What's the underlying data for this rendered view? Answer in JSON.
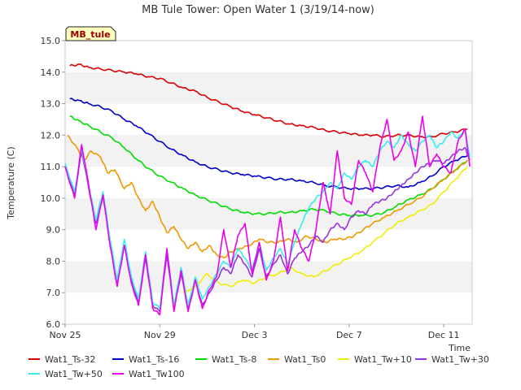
{
  "chart_data": {
    "type": "line",
    "title": "MB Tule Tower: Open Water 1 (3/19/14-now)",
    "ylabel": "Temperature (C)",
    "xlabel": "Time",
    "badge": "MB_tule",
    "xlim": [
      0,
      17.2
    ],
    "ylim": [
      6.0,
      15.0
    ],
    "yticks": [
      6.0,
      7.0,
      8.0,
      9.0,
      10.0,
      11.0,
      12.0,
      13.0,
      14.0,
      15.0
    ],
    "ytick_labels": [
      "6.0",
      "7.0",
      "8.0",
      "9.0",
      "10.0",
      "11.0",
      "12.0",
      "13.0",
      "14.0",
      "15.0"
    ],
    "xticks": [
      0,
      4,
      8,
      12,
      16
    ],
    "xtick_labels": [
      "Nov 25",
      "Nov 29",
      "Dec 3",
      "Dec 7",
      "Dec 11"
    ],
    "grid_bands": true,
    "legend_position": "bottom",
    "series": [
      {
        "name": "Wat1_Ts-32",
        "color": "#dd0000",
        "x": [
          0.2,
          0.6,
          1,
          1.5,
          2,
          2.5,
          3,
          3.5,
          4,
          4.5,
          5,
          5.5,
          6,
          6.5,
          7,
          7.5,
          8,
          8.5,
          9,
          9.5,
          10,
          10.5,
          11,
          11.5,
          12,
          12.5,
          13,
          13.5,
          14,
          14.5,
          15,
          15.5,
          16,
          16.5,
          17
        ],
        "y": [
          14.2,
          14.25,
          14.15,
          14.1,
          14.05,
          14.0,
          13.95,
          13.85,
          13.8,
          13.65,
          13.5,
          13.4,
          13.2,
          13.05,
          12.9,
          12.75,
          12.65,
          12.55,
          12.45,
          12.35,
          12.3,
          12.25,
          12.15,
          12.1,
          12.05,
          12.0,
          12.0,
          11.95,
          12.0,
          12.0,
          11.95,
          11.95,
          12.05,
          12.1,
          12.2
        ]
      },
      {
        "name": "Wat1_Ts-16",
        "color": "#0000cc",
        "x": [
          0.2,
          0.6,
          1,
          1.5,
          2,
          2.5,
          3,
          3.5,
          4,
          4.5,
          5,
          5.5,
          6,
          6.5,
          7,
          7.5,
          8,
          8.5,
          9,
          9.5,
          10,
          10.5,
          11,
          11.5,
          12,
          12.5,
          13,
          13.5,
          14,
          14.5,
          15,
          15.5,
          16,
          16.5,
          17
        ],
        "y": [
          13.15,
          13.1,
          13.0,
          12.9,
          12.75,
          12.5,
          12.3,
          12.05,
          11.8,
          11.55,
          11.35,
          11.15,
          11.0,
          10.9,
          10.8,
          10.75,
          10.7,
          10.65,
          10.6,
          10.6,
          10.55,
          10.5,
          10.4,
          10.35,
          10.3,
          10.3,
          10.3,
          10.35,
          10.4,
          10.35,
          10.5,
          10.7,
          11.0,
          11.2,
          11.35
        ]
      },
      {
        "name": "Wat1_Ts-8",
        "color": "#00dd00",
        "x": [
          0.2,
          0.6,
          1,
          1.5,
          2,
          2.5,
          3,
          3.5,
          4,
          4.5,
          5,
          5.5,
          6,
          6.5,
          7,
          7.5,
          8,
          8.5,
          9,
          9.5,
          10,
          10.5,
          11,
          11.5,
          12,
          12.5,
          13,
          13.5,
          14,
          14.5,
          15,
          15.5,
          16,
          16.5,
          17
        ],
        "y": [
          12.6,
          12.45,
          12.3,
          12.1,
          11.9,
          11.6,
          11.25,
          10.95,
          10.7,
          10.5,
          10.3,
          10.1,
          9.95,
          9.8,
          9.65,
          9.55,
          9.5,
          9.5,
          9.55,
          9.55,
          9.6,
          9.65,
          9.6,
          9.5,
          9.45,
          9.45,
          9.45,
          9.55,
          9.75,
          9.95,
          10.1,
          10.3,
          10.6,
          10.9,
          11.2
        ]
      },
      {
        "name": "Wat1_Ts0",
        "color": "#ee9900",
        "x": [
          0.1,
          0.5,
          0.8,
          1.1,
          1.5,
          1.8,
          2.1,
          2.5,
          2.8,
          3.1,
          3.4,
          3.7,
          4.0,
          4.3,
          4.6,
          4.9,
          5.2,
          5.5,
          5.8,
          6.1,
          6.4,
          6.7,
          7.0,
          7.4,
          7.8,
          8.2,
          8.6,
          9.0,
          9.4,
          9.8,
          10.2,
          10.6,
          11.0,
          11.4,
          11.8,
          12.2,
          12.6,
          13.0,
          13.5,
          14.0,
          14.5,
          15.0,
          15.5,
          16.0,
          16.5,
          17.0
        ],
        "y": [
          12.0,
          11.6,
          11.2,
          11.5,
          11.3,
          10.8,
          10.9,
          10.3,
          10.5,
          10.0,
          9.6,
          9.9,
          9.4,
          8.9,
          9.1,
          8.7,
          8.4,
          8.6,
          8.3,
          8.5,
          8.2,
          8.1,
          8.3,
          8.4,
          8.5,
          8.7,
          8.6,
          8.6,
          8.7,
          8.6,
          8.8,
          8.7,
          8.6,
          8.7,
          8.7,
          8.8,
          9.0,
          9.2,
          9.4,
          9.6,
          9.8,
          10.0,
          10.3,
          10.6,
          10.9,
          11.2
        ]
      },
      {
        "name": "Wat1_Tw+10",
        "color": "#eeee00",
        "x": [
          5,
          5.5,
          6,
          6.5,
          7,
          7.5,
          8,
          8.5,
          9,
          9.5,
          10,
          10.5,
          11,
          11.5,
          12,
          12.5,
          13,
          13.5,
          14,
          14.5,
          15,
          15.5,
          16,
          16.5,
          17
        ],
        "y": [
          7.0,
          7.2,
          7.6,
          7.3,
          7.2,
          7.4,
          7.3,
          7.5,
          7.6,
          7.8,
          7.6,
          7.5,
          7.7,
          7.9,
          8.1,
          8.3,
          8.6,
          8.9,
          9.2,
          9.4,
          9.6,
          9.8,
          10.2,
          10.6,
          11.0
        ]
      },
      {
        "name": "Wat1_Tw+30",
        "color": "#9933dd",
        "x": [
          0,
          0.4,
          0.7,
          1.0,
          1.3,
          1.6,
          1.9,
          2.2,
          2.5,
          2.8,
          3.1,
          3.4,
          3.7,
          4.0,
          4.3,
          4.6,
          4.9,
          5.2,
          5.5,
          5.8,
          6.1,
          6.4,
          6.7,
          7.0,
          7.3,
          7.6,
          7.9,
          8.2,
          8.5,
          8.8,
          9.1,
          9.4,
          9.7,
          10.0,
          10.3,
          10.6,
          10.9,
          11.2,
          11.5,
          11.8,
          12.1,
          12.4,
          12.7,
          13.0,
          13.3,
          13.6,
          13.9,
          14.2,
          14.5,
          14.8,
          15.1,
          15.4,
          15.7,
          16.0,
          16.3,
          16.6,
          16.9,
          17.1
        ],
        "y": [
          11.0,
          10.1,
          11.5,
          10.3,
          9.2,
          10.1,
          8.6,
          7.3,
          8.5,
          7.4,
          6.7,
          8.1,
          6.6,
          6.4,
          8.2,
          6.5,
          7.6,
          6.5,
          7.4,
          6.6,
          7.0,
          7.4,
          7.8,
          7.6,
          8.2,
          7.9,
          7.5,
          8.4,
          7.5,
          7.9,
          8.2,
          7.6,
          8.1,
          8.3,
          8.5,
          8.8,
          8.6,
          9.0,
          9.2,
          9.0,
          9.4,
          9.6,
          9.5,
          9.8,
          9.9,
          10.0,
          10.2,
          10.4,
          10.6,
          10.8,
          11.0,
          11.1,
          11.2,
          11.1,
          11.3,
          11.5,
          11.6,
          11.2
        ]
      },
      {
        "name": "Wat1_Tw+50",
        "color": "#33eeee",
        "x": [
          0,
          0.4,
          0.7,
          1.0,
          1.3,
          1.6,
          1.9,
          2.2,
          2.5,
          2.8,
          3.1,
          3.4,
          3.7,
          4.0,
          4.3,
          4.6,
          4.9,
          5.2,
          5.5,
          5.8,
          6.1,
          6.4,
          6.7,
          7.0,
          7.3,
          7.6,
          7.9,
          8.2,
          8.5,
          8.8,
          9.1,
          9.4,
          9.7,
          10.0,
          10.3,
          10.6,
          10.9,
          11.2,
          11.5,
          11.8,
          12.1,
          12.4,
          12.7,
          13.0,
          13.3,
          13.6,
          13.9,
          14.2,
          14.5,
          14.8,
          15.1,
          15.4,
          15.7,
          16.0,
          16.3,
          16.6,
          16.9,
          17.1
        ],
        "y": [
          11.1,
          10.2,
          11.6,
          10.4,
          9.3,
          10.2,
          8.7,
          7.4,
          8.7,
          7.5,
          6.8,
          8.3,
          6.7,
          6.5,
          8.4,
          6.6,
          7.8,
          6.6,
          7.5,
          6.8,
          7.2,
          7.6,
          8.0,
          7.8,
          8.4,
          8.1,
          7.7,
          8.6,
          7.7,
          8.1,
          8.4,
          7.9,
          8.6,
          9.2,
          9.7,
          10.0,
          10.2,
          10.5,
          10.3,
          10.8,
          10.6,
          11.0,
          11.2,
          11.0,
          11.5,
          11.8,
          11.6,
          12.0,
          11.7,
          11.5,
          11.8,
          12.0,
          11.6,
          11.8,
          12.1,
          11.9,
          12.2,
          11.3
        ]
      },
      {
        "name": "Wat1_Tw100",
        "color": "#ee00ee",
        "x": [
          0,
          0.4,
          0.7,
          1.0,
          1.3,
          1.6,
          1.9,
          2.2,
          2.5,
          2.8,
          3.1,
          3.4,
          3.7,
          4.0,
          4.3,
          4.6,
          4.9,
          5.2,
          5.5,
          5.8,
          6.1,
          6.4,
          6.7,
          7.0,
          7.3,
          7.6,
          7.9,
          8.2,
          8.5,
          8.8,
          9.1,
          9.4,
          9.7,
          10.0,
          10.3,
          10.6,
          10.9,
          11.2,
          11.5,
          11.8,
          12.1,
          12.4,
          12.7,
          13.0,
          13.3,
          13.6,
          13.9,
          14.2,
          14.5,
          14.8,
          15.1,
          15.4,
          15.7,
          16.0,
          16.3,
          16.6,
          16.9,
          17.1
        ],
        "y": [
          11.0,
          10.0,
          11.7,
          10.4,
          9.0,
          10.1,
          8.5,
          7.2,
          8.5,
          7.3,
          6.6,
          8.2,
          6.5,
          6.3,
          8.4,
          6.4,
          7.7,
          6.4,
          7.4,
          6.5,
          7.1,
          7.5,
          9.0,
          7.8,
          8.8,
          9.2,
          7.6,
          8.6,
          7.4,
          8.0,
          9.4,
          7.7,
          9.0,
          8.4,
          8.0,
          9.0,
          10.5,
          9.5,
          11.5,
          10.0,
          9.8,
          11.2,
          10.8,
          10.2,
          11.6,
          12.5,
          11.2,
          11.5,
          12.1,
          11.0,
          12.6,
          11.0,
          11.4,
          11.0,
          10.8,
          11.8,
          12.2,
          11.0
        ]
      }
    ]
  }
}
